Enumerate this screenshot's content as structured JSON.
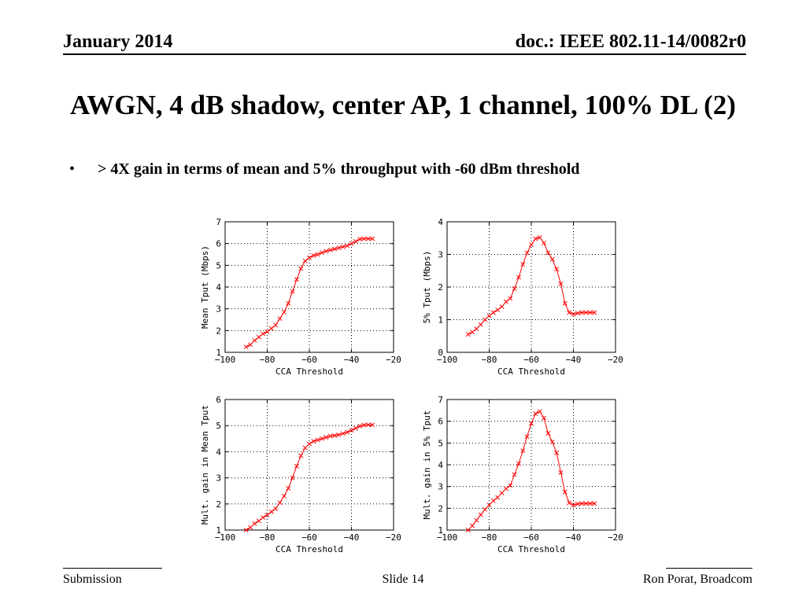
{
  "header": {
    "date": "January 2014",
    "doc": "doc.: IEEE 802.11-14/0082r0"
  },
  "title": "AWGN, 4 dB shadow, center AP, 1 channel, 100% DL (2)",
  "bullet": {
    "symbol": "•",
    "text": "> 4X gain in terms of mean and 5% throughput with -60 dBm threshold"
  },
  "footer": {
    "left": "Submission",
    "center": "Slide 14",
    "right": "Ron Porat, Broadcom"
  },
  "colors": {
    "series": "#ff0000",
    "grid": "#000000"
  },
  "chart_data": [
    {
      "type": "line",
      "xlabel": "CCA Threshold",
      "ylabel": "Mean Tput (Mbps)",
      "xlim": [
        -100,
        -20
      ],
      "ylim": [
        1,
        7
      ],
      "xticks": [
        -100,
        -80,
        -60,
        -40,
        -20
      ],
      "yticks": [
        1,
        2,
        3,
        4,
        5,
        6,
        7
      ],
      "grid": true,
      "marker": "x",
      "x": [
        -90,
        -88,
        -86,
        -84,
        -82,
        -80,
        -78,
        -76,
        -74,
        -72,
        -70,
        -68,
        -66,
        -64,
        -62,
        -60,
        -58,
        -56,
        -54,
        -52,
        -50,
        -48,
        -46,
        -44,
        -42,
        -40,
        -38,
        -36,
        -34,
        -32,
        -30
      ],
      "y": [
        1.25,
        1.35,
        1.55,
        1.7,
        1.85,
        1.95,
        2.1,
        2.25,
        2.55,
        2.85,
        3.25,
        3.8,
        4.35,
        4.85,
        5.2,
        5.35,
        5.45,
        5.5,
        5.58,
        5.65,
        5.7,
        5.75,
        5.8,
        5.85,
        5.9,
        6.0,
        6.1,
        6.2,
        6.22,
        6.22,
        6.22
      ]
    },
    {
      "type": "line",
      "xlabel": "CCA Threshold",
      "ylabel": "5% Tput (Mbps)",
      "xlim": [
        -100,
        -20
      ],
      "ylim": [
        0,
        4
      ],
      "xticks": [
        -100,
        -80,
        -60,
        -40,
        -20
      ],
      "yticks": [
        0,
        1,
        2,
        3,
        4
      ],
      "grid": true,
      "marker": "x",
      "x": [
        -90,
        -88,
        -86,
        -84,
        -82,
        -80,
        -78,
        -76,
        -74,
        -72,
        -70,
        -68,
        -66,
        -64,
        -62,
        -60,
        -58,
        -56,
        -54,
        -52,
        -50,
        -48,
        -46,
        -44,
        -42,
        -40,
        -38,
        -36,
        -34,
        -32,
        -30
      ],
      "y": [
        0.55,
        0.62,
        0.72,
        0.85,
        1.0,
        1.12,
        1.22,
        1.3,
        1.4,
        1.55,
        1.65,
        1.95,
        2.3,
        2.7,
        3.05,
        3.3,
        3.48,
        3.52,
        3.35,
        3.05,
        2.85,
        2.55,
        2.1,
        1.5,
        1.22,
        1.17,
        1.2,
        1.22,
        1.22,
        1.22,
        1.22
      ]
    },
    {
      "type": "line",
      "xlabel": "CCA Threshold",
      "ylabel": "Mult. gain in Mean Tput",
      "xlim": [
        -100,
        -20
      ],
      "ylim": [
        1,
        6
      ],
      "xticks": [
        -100,
        -80,
        -60,
        -40,
        -20
      ],
      "yticks": [
        1,
        2,
        3,
        4,
        5,
        6
      ],
      "grid": true,
      "marker": "x",
      "x": [
        -90,
        -88,
        -86,
        -84,
        -82,
        -80,
        -78,
        -76,
        -74,
        -72,
        -70,
        -68,
        -66,
        -64,
        -62,
        -60,
        -58,
        -56,
        -54,
        -52,
        -50,
        -48,
        -46,
        -44,
        -42,
        -40,
        -38,
        -36,
        -34,
        -32,
        -30
      ],
      "y": [
        1.0,
        1.1,
        1.25,
        1.35,
        1.48,
        1.58,
        1.7,
        1.82,
        2.05,
        2.3,
        2.6,
        3.0,
        3.45,
        3.85,
        4.15,
        4.3,
        4.4,
        4.45,
        4.5,
        4.55,
        4.6,
        4.62,
        4.65,
        4.7,
        4.75,
        4.82,
        4.9,
        4.98,
        5.02,
        5.03,
        5.03
      ]
    },
    {
      "type": "line",
      "xlabel": "CCA Threshold",
      "ylabel": "Mult. gain in 5% Tput",
      "xlim": [
        -100,
        -20
      ],
      "ylim": [
        1,
        7
      ],
      "xticks": [
        -100,
        -80,
        -60,
        -40,
        -20
      ],
      "yticks": [
        1,
        2,
        3,
        4,
        5,
        6,
        7
      ],
      "grid": true,
      "marker": "x",
      "x": [
        -90,
        -88,
        -86,
        -84,
        -82,
        -80,
        -78,
        -76,
        -74,
        -72,
        -70,
        -68,
        -66,
        -64,
        -62,
        -60,
        -58,
        -56,
        -54,
        -52,
        -50,
        -48,
        -46,
        -44,
        -42,
        -40,
        -38,
        -36,
        -34,
        -32,
        -30
      ],
      "y": [
        1.0,
        1.2,
        1.45,
        1.7,
        1.95,
        2.15,
        2.35,
        2.5,
        2.7,
        2.9,
        3.05,
        3.55,
        4.05,
        4.65,
        5.3,
        5.9,
        6.35,
        6.45,
        6.15,
        5.45,
        5.05,
        4.55,
        3.65,
        2.75,
        2.25,
        2.15,
        2.2,
        2.22,
        2.22,
        2.22,
        2.22
      ]
    }
  ]
}
